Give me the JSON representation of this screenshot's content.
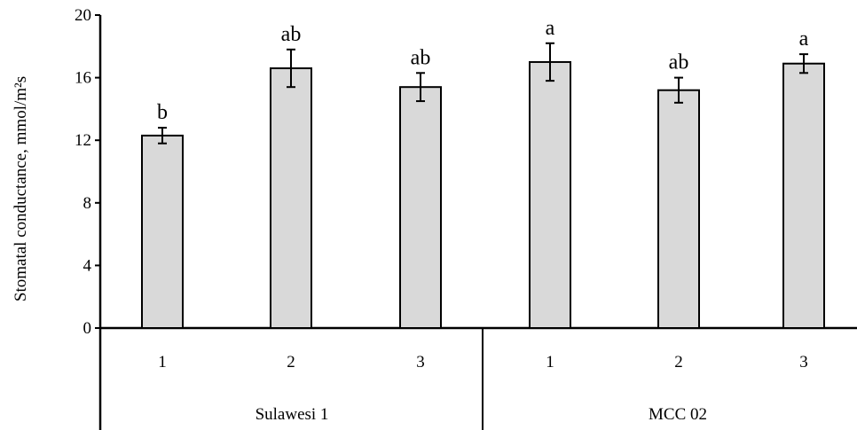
{
  "chart_data": {
    "type": "bar",
    "ylabel": "Stomatal conductance, mmol/m²s",
    "xlabel": "",
    "ylim": [
      0,
      20
    ],
    "yticks": [
      0,
      4,
      8,
      12,
      16,
      20
    ],
    "grid": false,
    "groups": [
      {
        "name": "Sulawesi 1",
        "categories": [
          "1",
          "2",
          "3"
        ]
      },
      {
        "name": "MCC 02",
        "categories": [
          "1",
          "2",
          "3"
        ]
      }
    ],
    "bars": [
      {
        "group": "Sulawesi 1",
        "category": "1",
        "value": 12.3,
        "error": 0.5,
        "letter": "b"
      },
      {
        "group": "Sulawesi 1",
        "category": "2",
        "value": 16.6,
        "error": 1.2,
        "letter": "ab"
      },
      {
        "group": "Sulawesi 1",
        "category": "3",
        "value": 15.4,
        "error": 0.9,
        "letter": "ab"
      },
      {
        "group": "MCC 02",
        "category": "1",
        "value": 17.0,
        "error": 1.2,
        "letter": "a"
      },
      {
        "group": "MCC 02",
        "category": "2",
        "value": 15.2,
        "error": 0.8,
        "letter": "ab"
      },
      {
        "group": "MCC 02",
        "category": "3",
        "value": 16.9,
        "error": 0.6,
        "letter": "a"
      }
    ],
    "colors": {
      "bar_fill": "#d9d9d9",
      "bar_stroke": "#000000"
    }
  }
}
